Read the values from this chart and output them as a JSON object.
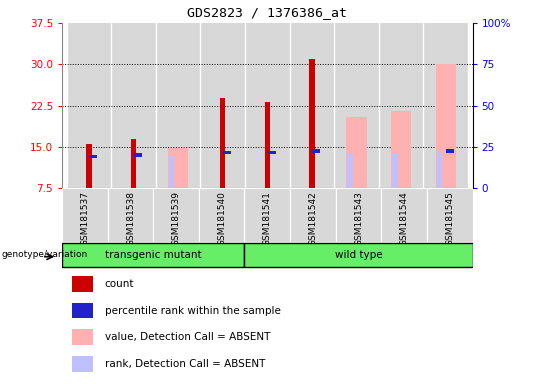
{
  "title": "GDS2823 / 1376386_at",
  "samples": [
    "GSM181537",
    "GSM181538",
    "GSM181539",
    "GSM181540",
    "GSM181541",
    "GSM181542",
    "GSM181543",
    "GSM181544",
    "GSM181545"
  ],
  "count_values": [
    15.6,
    16.5,
    null,
    23.8,
    23.1,
    31.0,
    null,
    null,
    null
  ],
  "rank_values": [
    19.0,
    20.0,
    null,
    21.5,
    21.5,
    22.5,
    null,
    null,
    22.5
  ],
  "absent_value_values": [
    null,
    null,
    14.8,
    null,
    null,
    null,
    20.5,
    21.5,
    30.0
  ],
  "absent_rank_values": [
    null,
    null,
    19.5,
    null,
    null,
    null,
    21.5,
    21.5,
    22.5
  ],
  "ylim_left": [
    7.5,
    37.5
  ],
  "ylim_right": [
    0,
    100
  ],
  "yticks_left": [
    7.5,
    15.0,
    22.5,
    30.0,
    37.5
  ],
  "yticks_right": [
    0,
    25,
    50,
    75,
    100
  ],
  "ytick_labels_right": [
    "0",
    "25",
    "50",
    "75",
    "100%"
  ],
  "group1_label": "transgenic mutant",
  "group2_label": "wild type",
  "group1_count": 4,
  "group2_count": 5,
  "genotype_label": "genotype/variation",
  "legend_labels": [
    "count",
    "percentile rank within the sample",
    "value, Detection Call = ABSENT",
    "rank, Detection Call = ABSENT"
  ],
  "count_color": "#cc0000",
  "rank_color": "#2222cc",
  "absent_value_color": "#ffb0b0",
  "absent_rank_color": "#c0c0ff",
  "col_bg_color": "#d8d8d8",
  "plot_bg": "#ffffff",
  "group_green": "#66ee66"
}
